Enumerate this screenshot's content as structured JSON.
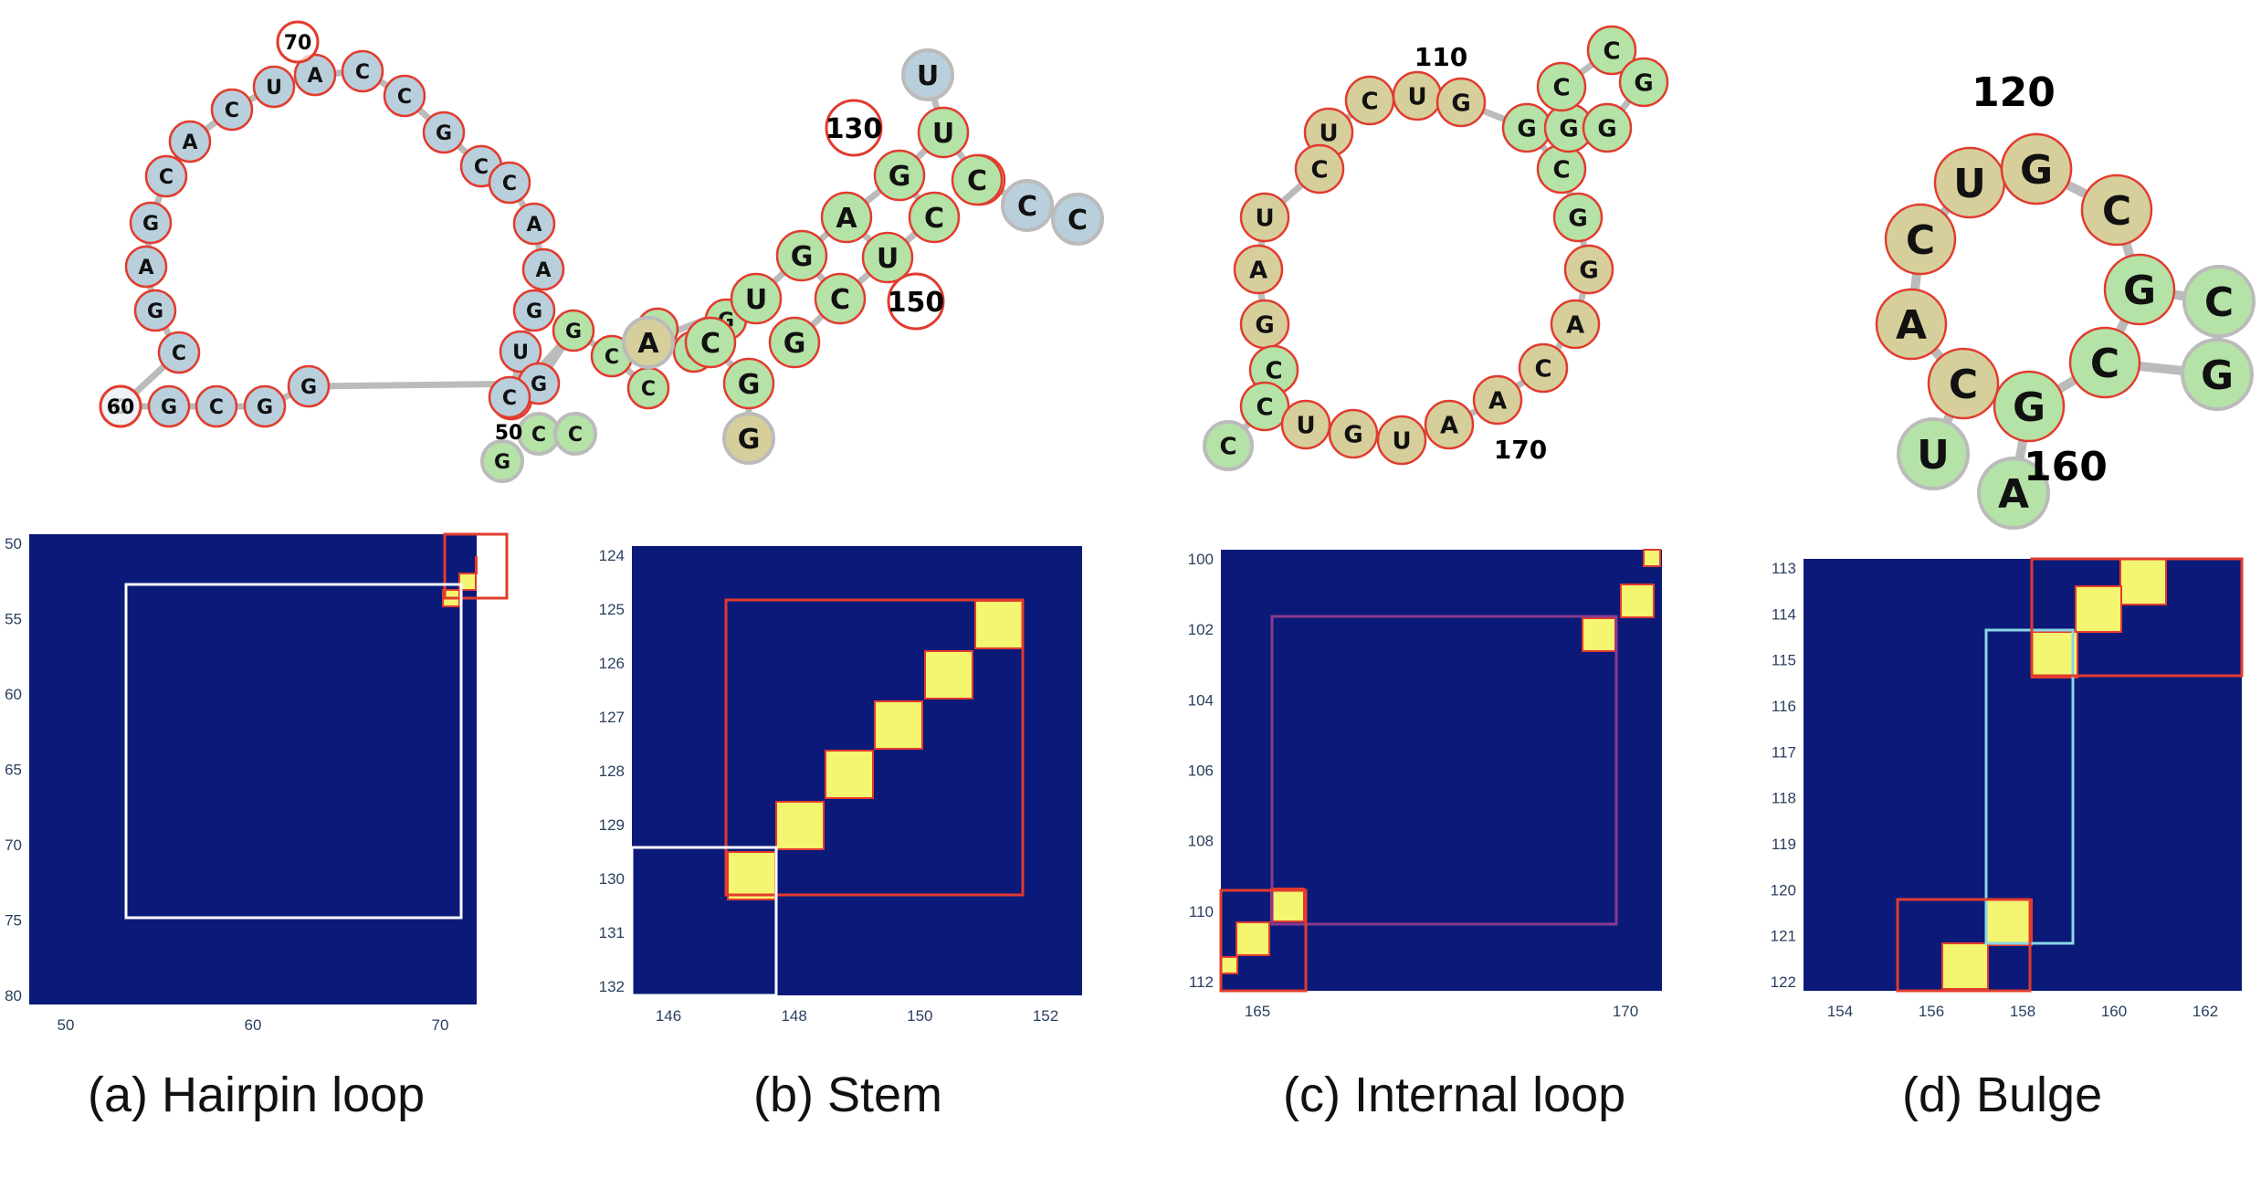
{
  "colors": {
    "loop_nt": "#b9cfdc",
    "stem_nt": "#b5e2a6",
    "mid_nt": "#d6cf9c",
    "outline": "#e23b2e",
    "backbone": "#bbbbbb",
    "heat_bg": "#0b1a78",
    "heat_cell": "#f4f570"
  },
  "panels": [
    {
      "caption": "(a) Hairpin loop",
      "diagram": {
        "nucleotides": [
          "G",
          "G",
          "C",
          "G",
          "G",
          "C",
          "G",
          "A",
          "G",
          "C",
          "A",
          "C",
          "U",
          "A",
          "C",
          "C",
          "G",
          "C",
          "C",
          "A",
          "A",
          "G",
          "U",
          "C",
          "G",
          "G",
          "C",
          "C",
          "C",
          "G",
          "G",
          "C",
          "G",
          "C",
          "C"
        ],
        "labels": [
          "70",
          "60",
          "50"
        ]
      },
      "heatmap": {
        "y_ticks": [
          "50",
          "55",
          "60",
          "65",
          "70",
          "75",
          "80"
        ],
        "x_ticks": [
          "50",
          "60",
          "70"
        ]
      }
    },
    {
      "caption": "(b) Stem",
      "diagram": {
        "nucleotides": [
          "U",
          "U",
          "G",
          "G",
          "A",
          "C",
          "G",
          "U",
          "U",
          "C",
          "A",
          "C",
          "G",
          "G",
          "G",
          "C",
          "C",
          "C"
        ],
        "labels": [
          "130",
          "150"
        ]
      },
      "heatmap": {
        "y_ticks": [
          "124",
          "125",
          "126",
          "127",
          "128",
          "129",
          "130",
          "131",
          "132"
        ],
        "x_ticks": [
          "146",
          "148",
          "150",
          "152"
        ]
      }
    },
    {
      "caption": "(c) Internal loop",
      "diagram": {
        "nucleotides": [
          "U",
          "C",
          "U",
          "G",
          "C",
          "U",
          "A",
          "G",
          "C",
          "C",
          "U",
          "G",
          "U",
          "A",
          "A",
          "C",
          "A",
          "G",
          "G",
          "C",
          "G",
          "G",
          "C",
          "C",
          "G",
          "G",
          "C"
        ],
        "labels": [
          "110",
          "170"
        ]
      },
      "heatmap": {
        "y_ticks": [
          "100",
          "102",
          "104",
          "106",
          "108",
          "110",
          "112"
        ],
        "x_ticks": [
          "165",
          "170"
        ]
      }
    },
    {
      "caption": "(d) Bulge",
      "diagram": {
        "nucleotides": [
          "C",
          "U",
          "C",
          "C",
          "A",
          "C",
          "G",
          "U",
          "A",
          "G",
          "C",
          "C",
          "G",
          "G"
        ],
        "labels": [
          "120",
          "160"
        ]
      },
      "heatmap": {
        "y_ticks": [
          "113",
          "114",
          "115",
          "116",
          "117",
          "118",
          "119",
          "120",
          "121",
          "122"
        ],
        "x_ticks": [
          "154",
          "156",
          "158",
          "160",
          "162"
        ]
      }
    }
  ]
}
